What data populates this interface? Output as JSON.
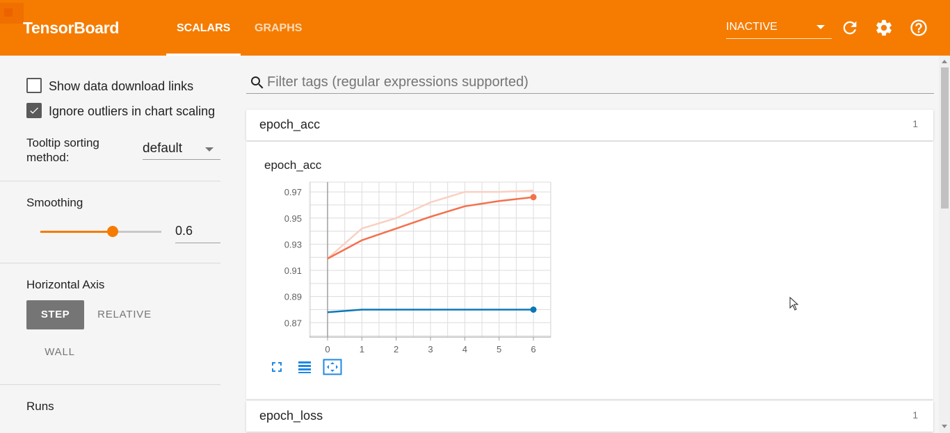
{
  "app": {
    "title": "TensorBoard"
  },
  "nav": {
    "tabs": [
      {
        "label": "SCALARS",
        "active": true
      },
      {
        "label": "GRAPHS",
        "active": false
      }
    ]
  },
  "run_select": {
    "value": "INACTIVE"
  },
  "icons": {
    "reload": "reload-icon",
    "settings": "gear-icon",
    "help": "help-icon",
    "search": "search-icon"
  },
  "colors": {
    "brand": "#f57c00",
    "train": "#f4704c",
    "validation": "#0b77b8"
  },
  "sidebar": {
    "show_download_links": {
      "label": "Show data download links",
      "checked": false
    },
    "ignore_outliers": {
      "label": "Ignore outliers in chart scaling",
      "checked": true
    },
    "tooltip_sorting": {
      "label": "Tooltip sorting method:",
      "value": "default"
    },
    "smoothing": {
      "label": "Smoothing",
      "value": "0.6",
      "level": 0.6
    },
    "horizontal_axis": {
      "label": "Horizontal Axis",
      "options": [
        "STEP",
        "RELATIVE",
        "WALL"
      ],
      "selected": "STEP"
    },
    "runs": {
      "label": "Runs"
    }
  },
  "main": {
    "search": {
      "placeholder": "Filter tags (regular expressions supported)"
    },
    "cards": [
      {
        "name": "epoch_acc",
        "count": "1"
      },
      {
        "name": "epoch_loss",
        "count": "1"
      }
    ]
  },
  "chart_data": {
    "type": "line",
    "title": "epoch_acc",
    "x": [
      0,
      1,
      2,
      3,
      4,
      5,
      6
    ],
    "xticks": [
      "0",
      "1",
      "2",
      "3",
      "4",
      "5",
      "6"
    ],
    "yticks": [
      "0.87",
      "0.89",
      "0.91",
      "0.93",
      "0.95",
      "0.97"
    ],
    "xlim": [
      0,
      6
    ],
    "ylim": [
      0.859,
      0.9775
    ],
    "grid": true,
    "series": [
      {
        "role": "train-raw",
        "color": "#f9d0c2",
        "values": [
          0.919,
          0.942,
          0.95,
          0.962,
          0.97,
          0.97,
          0.971
        ]
      },
      {
        "role": "train-smoothed",
        "color": "#f4704c",
        "values": [
          0.919,
          0.933,
          0.942,
          0.951,
          0.959,
          0.963,
          0.966
        ]
      },
      {
        "role": "validation",
        "color": "#0b77b8",
        "values": [
          0.878,
          0.88,
          0.88,
          0.88,
          0.88,
          0.88,
          0.88
        ]
      }
    ]
  }
}
